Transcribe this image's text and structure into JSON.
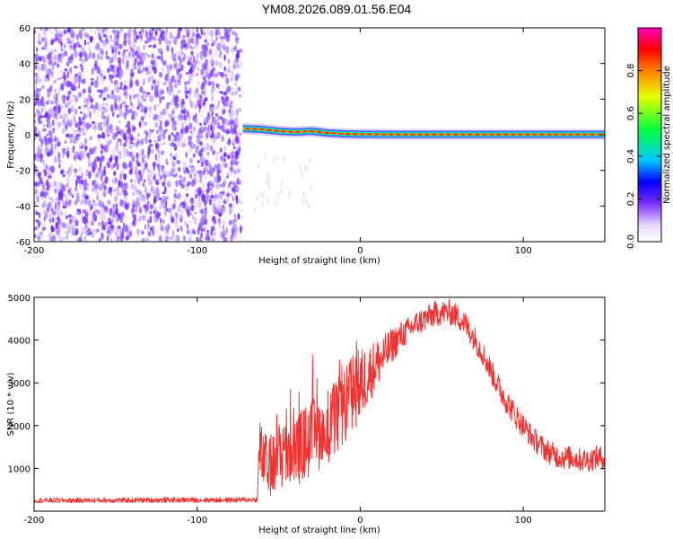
{
  "title": "YM08.2026.089.01.56.E04",
  "chart_data": [
    {
      "type": "heatmap",
      "xlabel": "Height of straight line (km)",
      "ylabel": "Frequency (Hz)",
      "xlim": [
        -200,
        150
      ],
      "ylim": [
        -60,
        60
      ],
      "xticks": [
        -200,
        -100,
        0,
        100
      ],
      "yticks": [
        -60,
        -40,
        -20,
        0,
        20,
        40,
        60
      ],
      "colorbar": {
        "label": "Normalized spectral amplitude",
        "range": [
          0.0,
          1.0
        ],
        "ticks": [
          "0.0",
          "0.2",
          "0.4",
          "0.6",
          "0.8"
        ],
        "colormap": "rainbow"
      },
      "noise_region": {
        "x_from": -200,
        "x_to": -73,
        "freq_from": -60,
        "freq_to": 60,
        "amplitude": 0.1
      },
      "signal_track": [
        {
          "x": -72,
          "freq": 3.5
        },
        {
          "x": -60,
          "freq": 3.0
        },
        {
          "x": -50,
          "freq": 2.0
        },
        {
          "x": -40,
          "freq": 1.5
        },
        {
          "x": -30,
          "freq": 2.0
        },
        {
          "x": -20,
          "freq": 1.0
        },
        {
          "x": -10,
          "freq": 0.5
        },
        {
          "x": 0,
          "freq": 0.3
        },
        {
          "x": 20,
          "freq": 0.2
        },
        {
          "x": 50,
          "freq": 0.2
        },
        {
          "x": 100,
          "freq": 0.2
        },
        {
          "x": 150,
          "freq": 0.2
        }
      ]
    },
    {
      "type": "line",
      "xlabel": "Height of straight line (km)",
      "ylabel": "SNR (10 * v/v)",
      "xlim": [
        -200,
        150
      ],
      "ylim": [
        0,
        5000
      ],
      "xticks": [
        -200,
        -100,
        0,
        100
      ],
      "yticks": [
        1000,
        2000,
        3000,
        4000,
        5000
      ],
      "color": "#ee3333",
      "series": [
        {
          "x": [
            -200,
            -180,
            -160,
            -140,
            -120,
            -100,
            -80,
            -63,
            -62,
            -60,
            -55,
            -50,
            -45,
            -40,
            -35,
            -30,
            -25,
            -20,
            -15,
            -10,
            -5,
            0,
            5,
            10,
            15,
            20,
            25,
            30,
            35,
            40,
            45,
            50,
            55,
            60,
            65,
            70,
            75,
            80,
            85,
            90,
            95,
            100,
            105,
            110,
            115,
            120,
            125,
            130,
            135,
            140,
            145,
            150
          ],
          "y": [
            250,
            250,
            255,
            255,
            260,
            260,
            260,
            270,
            1500,
            1200,
            1000,
            1300,
            1350,
            1400,
            1550,
            1700,
            1850,
            2000,
            2150,
            2400,
            2750,
            2950,
            3200,
            3450,
            3650,
            3900,
            4100,
            4250,
            4400,
            4500,
            4600,
            4650,
            4650,
            4550,
            4350,
            4050,
            3700,
            3300,
            2900,
            2550,
            2250,
            2000,
            1750,
            1550,
            1400,
            1300,
            1250,
            1250,
            1200,
            1200,
            1250,
            1250
          ],
          "amplitude": [
            60,
            60,
            60,
            60,
            60,
            60,
            60,
            60,
            900,
            700,
            700,
            800,
            800,
            800,
            900,
            900,
            900,
            900,
            900,
            900,
            900,
            900,
            700,
            600,
            500,
            400,
            350,
            300,
            300,
            300,
            300,
            300,
            300,
            300,
            300,
            300,
            300,
            300,
            300,
            300,
            300,
            280,
            280,
            280,
            280,
            280,
            280,
            280,
            280,
            280,
            280,
            280
          ]
        }
      ]
    }
  ]
}
